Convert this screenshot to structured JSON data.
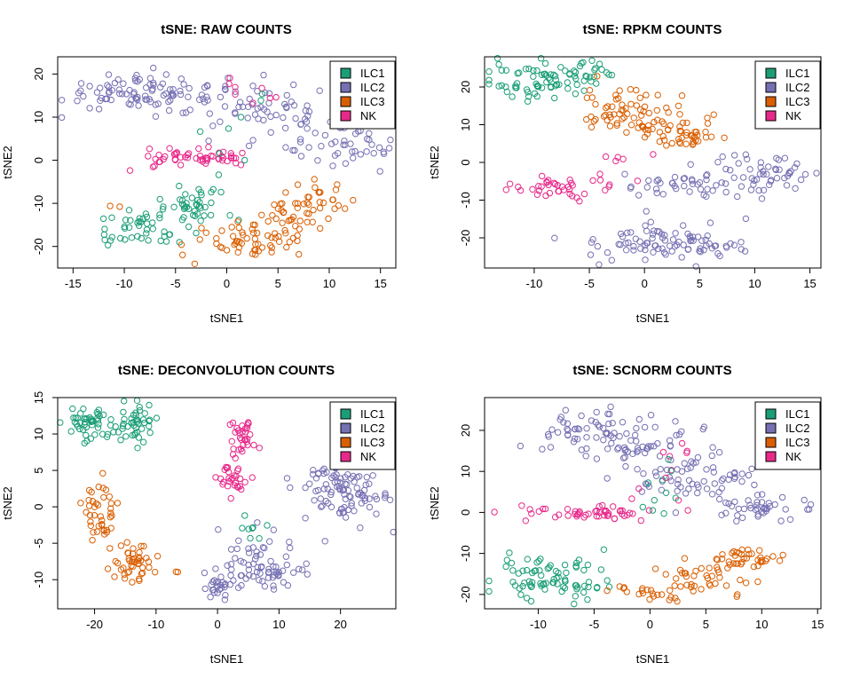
{
  "palette": {
    "ILC1": "#1b9e77",
    "ILC2": "#7570b3",
    "ILC3": "#d95f02",
    "NK": "#e7298a"
  },
  "chart_data": [
    {
      "type": "scatter",
      "title": "tSNE: RAW COUNTS",
      "xlabel": "tSNE1",
      "ylabel": "tSNE2",
      "xlim": [
        -16.5,
        16.5
      ],
      "ylim": [
        -25,
        24
      ],
      "xticks": [
        -15,
        -10,
        -5,
        0,
        5,
        10,
        15
      ],
      "yticks": [
        -20,
        -10,
        0,
        10,
        20
      ],
      "legend": {
        "position": "top-right",
        "entries": [
          "ILC1",
          "ILC2",
          "ILC3",
          "NK"
        ]
      },
      "clusters": [
        {
          "series": "ILC2",
          "cx": -9,
          "cy": 16,
          "sx": 3.8,
          "sy": 2.2,
          "n": 80
        },
        {
          "series": "ILC2",
          "cx": -1.5,
          "cy": 14,
          "sx": 3,
          "sy": 2.5,
          "n": 25
        },
        {
          "series": "ILC2",
          "cx": 5,
          "cy": 11,
          "sx": 2.6,
          "sy": 3.2,
          "n": 55
        },
        {
          "series": "ILC2",
          "cx": 12,
          "cy": 3,
          "sx": 1.8,
          "sy": 3,
          "n": 40
        },
        {
          "series": "NK",
          "cx": -3,
          "cy": 0.5,
          "sx": 3.3,
          "sy": 1,
          "n": 55
        },
        {
          "series": "NK",
          "cx": 2,
          "cy": 14,
          "sx": 2,
          "sy": 4,
          "n": 8
        },
        {
          "series": "ILC1",
          "cx": -8,
          "cy": -16,
          "sx": 2.3,
          "sy": 2,
          "n": 45
        },
        {
          "series": "ILC1",
          "cx": -3,
          "cy": -10,
          "sx": 2.2,
          "sy": 2,
          "n": 40
        },
        {
          "series": "ILC1",
          "cx": 1,
          "cy": 7,
          "sx": 2,
          "sy": 4,
          "n": 8
        },
        {
          "series": "ILC3",
          "cx": 1.5,
          "cy": -19,
          "sx": 2.5,
          "sy": 2.2,
          "n": 45
        },
        {
          "series": "ILC3",
          "cx": 6,
          "cy": -14,
          "sx": 2.2,
          "sy": 3,
          "n": 35
        },
        {
          "series": "ILC3",
          "cx": 8.5,
          "cy": -10,
          "sx": 1.5,
          "sy": 2.5,
          "n": 30
        },
        {
          "series": "ILC3",
          "cx": -11,
          "cy": -10.5,
          "sx": 0.6,
          "sy": 0.3,
          "n": 2
        }
      ]
    },
    {
      "type": "scatter",
      "title": "tSNE: RPKM COUNTS",
      "xlabel": "tSNE1",
      "ylabel": "tSNE2",
      "xlim": [
        -14.5,
        16
      ],
      "ylim": [
        -28,
        28
      ],
      "xticks": [
        -10,
        -5,
        0,
        5,
        10,
        15
      ],
      "yticks": [
        -20,
        -10,
        0,
        10,
        20
      ],
      "legend": {
        "position": "top-right",
        "entries": [
          "ILC1",
          "ILC2",
          "ILC3",
          "NK"
        ]
      },
      "clusters": [
        {
          "series": "ILC1",
          "cx": -9,
          "cy": 22,
          "sx": 2.5,
          "sy": 2.5,
          "n": 70
        },
        {
          "series": "ILC1",
          "cx": -5,
          "cy": 24,
          "sx": 1.5,
          "sy": 1.5,
          "n": 15
        },
        {
          "series": "ILC3",
          "cx": -2,
          "cy": 14,
          "sx": 2.2,
          "sy": 2.8,
          "n": 55
        },
        {
          "series": "ILC3",
          "cx": 2,
          "cy": 9,
          "sx": 2.2,
          "sy": 2.5,
          "n": 35
        },
        {
          "series": "ILC3",
          "cx": 4.5,
          "cy": 6.5,
          "sx": 1.5,
          "sy": 1,
          "n": 20
        },
        {
          "series": "ILC2",
          "cx": 1.5,
          "cy": -21,
          "sx": 3.8,
          "sy": 2.5,
          "n": 90
        },
        {
          "series": "ILC2",
          "cx": 5,
          "cy": -6,
          "sx": 4,
          "sy": 2.5,
          "n": 50
        },
        {
          "series": "ILC2",
          "cx": 11,
          "cy": -2,
          "sx": 2.5,
          "sy": 2.5,
          "n": 40
        },
        {
          "series": "NK",
          "cx": -8,
          "cy": -7,
          "sx": 2.2,
          "sy": 1.3,
          "n": 35
        },
        {
          "series": "NK",
          "cx": -2,
          "cy": -3,
          "sx": 2,
          "sy": 3,
          "n": 10
        }
      ]
    },
    {
      "type": "scatter",
      "title": "tSNE: DECONVOLUTION COUNTS",
      "xlabel": "tSNE1",
      "ylabel": "tSNE2",
      "xlim": [
        -26,
        29
      ],
      "ylim": [
        -14,
        15
      ],
      "xticks": [
        -20,
        -10,
        0,
        10,
        20
      ],
      "yticks": [
        -10,
        -5,
        0,
        5,
        10,
        15
      ],
      "legend": {
        "position": "top-right",
        "entries": [
          "ILC1",
          "ILC2",
          "ILC3",
          "NK"
        ]
      },
      "clusters": [
        {
          "series": "ILC1",
          "cx": -20.5,
          "cy": 11.5,
          "sx": 2.2,
          "sy": 1.3,
          "n": 50
        },
        {
          "series": "ILC1",
          "cx": -13,
          "cy": 11.5,
          "sx": 1.8,
          "sy": 1.3,
          "n": 40
        },
        {
          "series": "ILC3",
          "cx": -19,
          "cy": -1,
          "sx": 1.5,
          "sy": 2.5,
          "n": 40
        },
        {
          "series": "ILC3",
          "cx": -14,
          "cy": -7.5,
          "sx": 1.8,
          "sy": 1.5,
          "n": 45
        },
        {
          "series": "ILC3",
          "cx": -6,
          "cy": -8.5,
          "sx": 0.8,
          "sy": 0.3,
          "n": 2
        },
        {
          "series": "NK",
          "cx": 2,
          "cy": 4,
          "sx": 1.3,
          "sy": 1.2,
          "n": 30
        },
        {
          "series": "NK",
          "cx": 4.5,
          "cy": 9.5,
          "sx": 1.1,
          "sy": 1.2,
          "n": 30
        },
        {
          "series": "ILC2",
          "cx": 21,
          "cy": 2,
          "sx": 3.5,
          "sy": 2.3,
          "n": 100
        },
        {
          "series": "ILC2",
          "cx": 7,
          "cy": -8.5,
          "sx": 3.5,
          "sy": 2,
          "n": 70
        },
        {
          "series": "ILC2",
          "cx": 0,
          "cy": -11,
          "sx": 1.5,
          "sy": 1,
          "n": 25
        },
        {
          "series": "ILC1",
          "cx": 5,
          "cy": -4,
          "sx": 1.5,
          "sy": 1.5,
          "n": 8
        }
      ]
    },
    {
      "type": "scatter",
      "title": "tSNE: SCNORM COUNTS",
      "xlabel": "tSNE1",
      "ylabel": "tSNE2",
      "xlim": [
        -14.8,
        15.3
      ],
      "ylim": [
        -23.5,
        28
      ],
      "xticks": [
        -10,
        -5,
        0,
        5,
        10,
        15
      ],
      "yticks": [
        -20,
        -10,
        0,
        10,
        20
      ],
      "legend": {
        "position": "top-right",
        "entries": [
          "ILC1",
          "ILC2",
          "ILC3",
          "NK"
        ]
      },
      "clusters": [
        {
          "series": "ILC2",
          "cx": -3,
          "cy": 18,
          "sx": 3.2,
          "sy": 4,
          "n": 100
        },
        {
          "series": "ILC2",
          "cx": 4,
          "cy": 8,
          "sx": 3,
          "sy": 3,
          "n": 60
        },
        {
          "series": "ILC2",
          "cx": 10.5,
          "cy": 1,
          "sx": 2,
          "sy": 1.8,
          "n": 40
        },
        {
          "series": "NK",
          "cx": -6,
          "cy": 0,
          "sx": 3.5,
          "sy": 1,
          "n": 50
        },
        {
          "series": "NK",
          "cx": 1.5,
          "cy": 10,
          "sx": 1.5,
          "sy": 4,
          "n": 10
        },
        {
          "series": "ILC1",
          "cx": -9,
          "cy": -16,
          "sx": 2.3,
          "sy": 2.5,
          "n": 80
        },
        {
          "series": "ILC1",
          "cx": 1,
          "cy": 5,
          "sx": 1.5,
          "sy": 4,
          "n": 10
        },
        {
          "series": "ILC3",
          "cx": 0.5,
          "cy": -19,
          "sx": 2,
          "sy": 1,
          "n": 25
        },
        {
          "series": "ILC3",
          "cx": 5,
          "cy": -15,
          "sx": 2,
          "sy": 2.5,
          "n": 40
        },
        {
          "series": "ILC3",
          "cx": 9,
          "cy": -11,
          "sx": 1.3,
          "sy": 1.2,
          "n": 30
        }
      ]
    }
  ]
}
